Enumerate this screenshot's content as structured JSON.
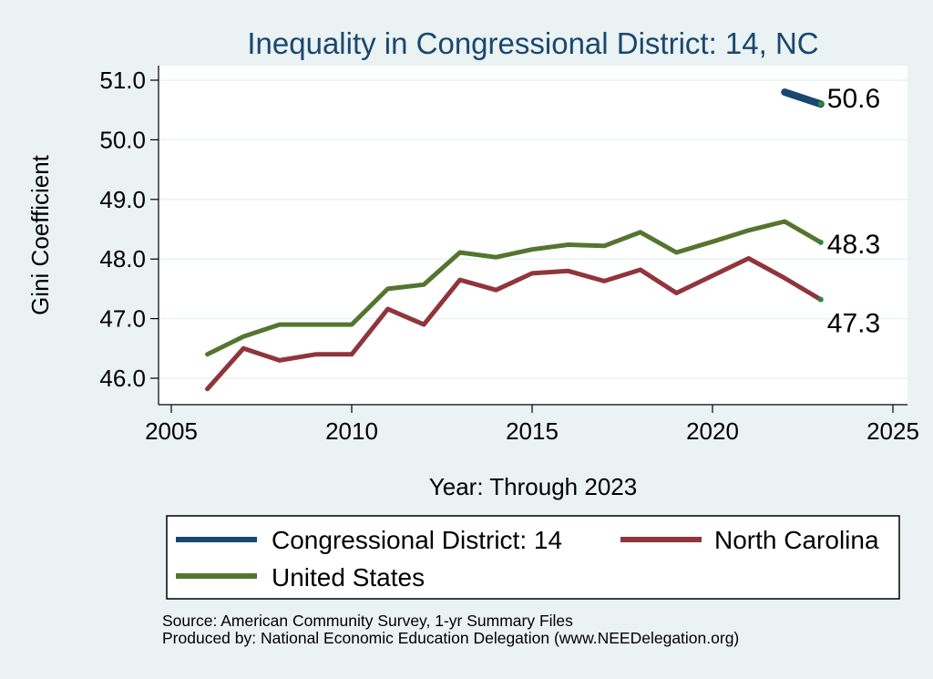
{
  "chart_data": {
    "type": "line",
    "title": "Inequality in Congressional District:  14, NC",
    "xlabel": "Year: Through 2023",
    "ylabel": "Gini Coefficient",
    "xlim": [
      2005,
      2025
    ],
    "ylim": [
      45.8,
      51.2
    ],
    "xticks": [
      2005,
      2010,
      2015,
      2020,
      2025
    ],
    "xtick_labels": [
      "2005",
      "2010",
      "2015",
      "2020",
      "2025"
    ],
    "yticks": [
      46.0,
      47.0,
      48.0,
      49.0,
      50.0,
      51.0
    ],
    "ytick_labels": [
      "46.0",
      "47.0",
      "48.0",
      "49.0",
      "50.0",
      "51.0"
    ],
    "grid": true,
    "series": [
      {
        "name": "Congressional District:  14",
        "color": "#1a476f",
        "x": [
          2022,
          2023
        ],
        "values": [
          50.8,
          50.6
        ],
        "end_label": "50.6"
      },
      {
        "name": "North Carolina",
        "color": "#90353b",
        "x": [
          2006,
          2007,
          2008,
          2009,
          2010,
          2011,
          2012,
          2013,
          2014,
          2015,
          2016,
          2017,
          2018,
          2019,
          2020,
          2021,
          2022,
          2023
        ],
        "values": [
          45.82,
          46.5,
          46.3,
          46.4,
          46.4,
          47.16,
          46.9,
          47.65,
          47.48,
          47.76,
          47.8,
          47.63,
          47.82,
          47.43,
          47.72,
          48.01,
          47.68,
          47.32
        ],
        "end_label": "47.3"
      },
      {
        "name": "United States",
        "color": "#55752f",
        "x": [
          2006,
          2007,
          2008,
          2009,
          2010,
          2011,
          2012,
          2013,
          2014,
          2015,
          2016,
          2017,
          2018,
          2019,
          2020,
          2021,
          2022,
          2023
        ],
        "values": [
          46.4,
          46.7,
          46.9,
          46.9,
          46.9,
          47.5,
          47.57,
          48.11,
          48.03,
          48.16,
          48.24,
          48.22,
          48.45,
          48.11,
          48.29,
          48.48,
          48.63,
          48.28
        ],
        "end_label": "48.3"
      }
    ],
    "legend": {
      "position": "bottom",
      "entries": [
        "Congressional District:  14",
        "North Carolina",
        "United States"
      ]
    }
  },
  "notes": {
    "source": "Source: American Community Survey, 1-yr Summary Files",
    "produced_by": "Produced by: National Economic Education Delegation (www.NEEDelegation.org)"
  }
}
